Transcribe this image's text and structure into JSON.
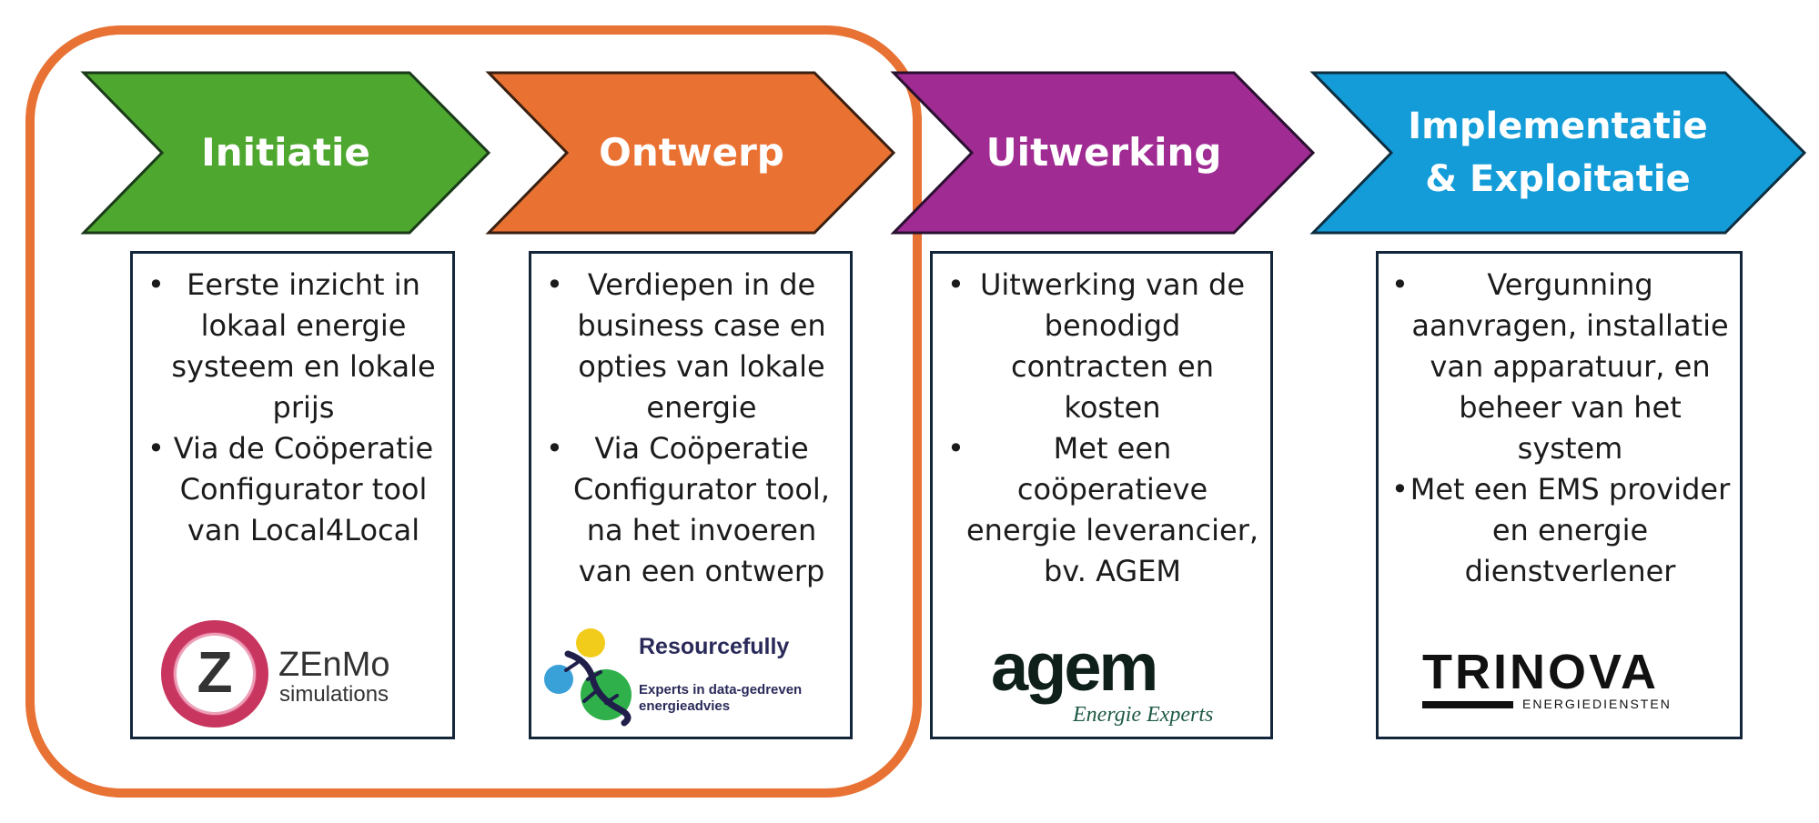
{
  "phases": [
    {
      "id": "initiatie",
      "title": "Initiatie",
      "color": "#4ea72e",
      "bullets": [
        "Eerste inzicht in lokaal energie systeem en lokale prijs",
        "Via de Coöperatie Configurator tool van Local4Local"
      ],
      "logo": {
        "name": "ZEnMo",
        "sub": "simulations"
      }
    },
    {
      "id": "ontwerp",
      "title": "Ontwerp",
      "color": "#e97132",
      "bullets": [
        "Verdiepen in de business case en opties van lokale energie",
        "Via Coöperatie Configurator tool, na het invoeren van een ontwerp"
      ],
      "logo": {
        "name": "Resourcefully",
        "sub": "Experts in data-gedreven energieadvies"
      }
    },
    {
      "id": "uitwerking",
      "title": "Uitwerking",
      "color": "#a02b93",
      "bullets": [
        "Uitwerking van de benodigd contracten en kosten",
        "Met een coöperatieve energie leverancier, bv. AGEM"
      ],
      "logo": {
        "name": "agem",
        "sub": "Energie Experts"
      }
    },
    {
      "id": "implementatie",
      "title_lines": [
        "Implementatie",
        "& Exploitatie"
      ],
      "color": "#139cd8",
      "bullets": [
        "Vergunning aanvragen, installatie van apparatuur, en beheer van het system",
        "Met een EMS provider en energie dienstverlener"
      ],
      "logo": {
        "name": "TRINOVA",
        "sub": "ENERGIEDIENSTEN"
      }
    }
  ]
}
